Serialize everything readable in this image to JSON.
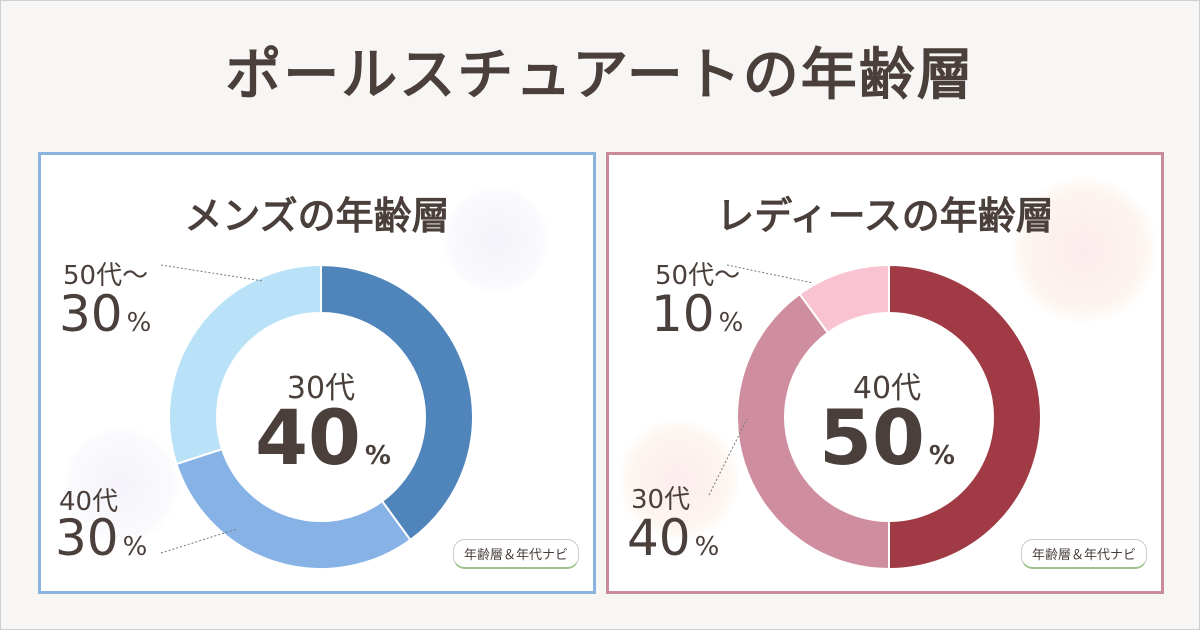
{
  "title": "ポールスチュアートの年齢層",
  "credit": "年齢層＆年代ナビ",
  "colors": {
    "men": [
      "#5085bb",
      "#86b2e6",
      "#b9e2f8"
    ],
    "women": [
      "#a03a45",
      "#cf8e9f",
      "#f9c3d1"
    ]
  },
  "chart_data": [
    {
      "type": "pie",
      "title": "メンズの年齢層",
      "categories": [
        "30代",
        "40代",
        "50代～"
      ],
      "values": [
        40,
        30,
        30
      ],
      "highlight": {
        "label": "30代",
        "value": "40"
      }
    },
    {
      "type": "pie",
      "title": "レディースの年齢層",
      "categories": [
        "40代",
        "30代",
        "50代～"
      ],
      "values": [
        50,
        40,
        10
      ],
      "highlight": {
        "label": "40代",
        "value": "50"
      }
    }
  ],
  "labels": {
    "pct": "%",
    "men": {
      "c50_label": "50代～",
      "c50_value": "30",
      "c40_label": "40代",
      "c40_value": "30"
    },
    "women": {
      "c50_label": "50代～",
      "c50_value": "10",
      "c30_label": "30代",
      "c30_value": "40"
    }
  }
}
